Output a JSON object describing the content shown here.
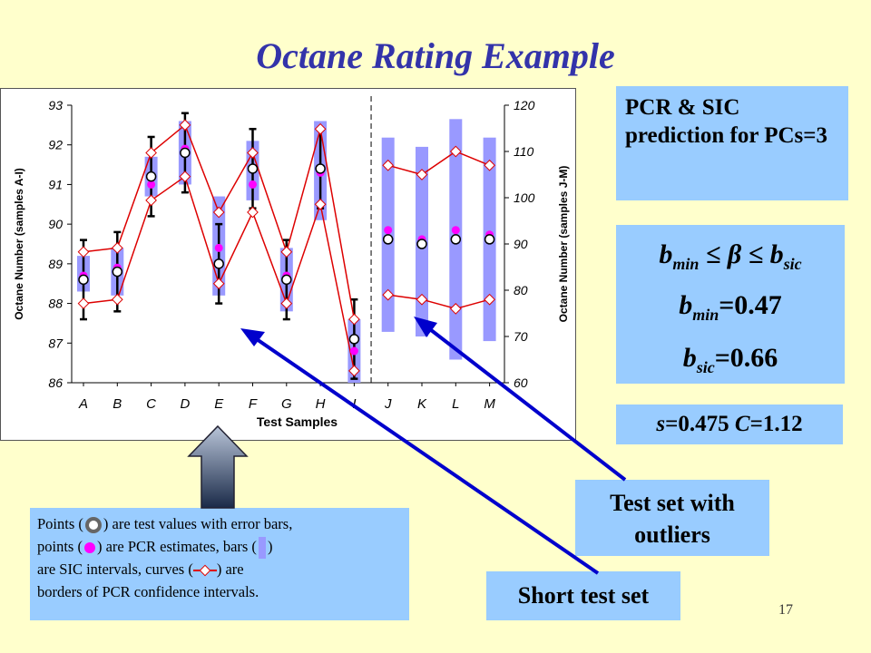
{
  "slide": {
    "title": "Octane Rating Example",
    "number": "17"
  },
  "boxes": {
    "prediction": "PCR & SIC prediction for PCs=3",
    "inequality": {
      "b_min": "b",
      "min_sub": "min",
      "le1": "≤",
      "beta": "β",
      "le2": "≤",
      "b_sic": "b",
      "sic_sub": "sic"
    },
    "bmin_value": {
      "b": "b",
      "sub": "min",
      "val": "=0.47"
    },
    "bsic_value": {
      "b": "b",
      "sub": "sic",
      "val": "=0.66"
    },
    "params": {
      "s_label": "s",
      "s_val": "=0.475 ",
      "c_label": "C",
      "c_val": "=1.12"
    },
    "test_outliers": "Test set with outliers",
    "short_test": "Short test set",
    "legend_text": {
      "p1": "Points (",
      "p2": ") are test values with error bars,",
      "p3": "points (",
      "p4": ") are PCR estimates, bars (",
      "p5": ")",
      "p6": "are SIC intervals, curves (",
      "p7": ") are",
      "p8": "borders of PCR confidence intervals."
    }
  },
  "colors": {
    "background": "#ffffcc",
    "title": "#3333aa",
    "box": "#99ccff",
    "sic_bar": "#9999ff",
    "pcr_point": "#ff00ff",
    "curve": "#dd0000",
    "arrow": "#0000cc"
  },
  "chart_data": {
    "type": "line",
    "xlabel": "Test Samples",
    "ylabel_left": "Octane Number (samples A-I)",
    "ylabel_right": "Octane Number (samples J-M)",
    "categories": [
      "A",
      "B",
      "C",
      "D",
      "E",
      "F",
      "G",
      "H",
      "I",
      "J",
      "K",
      "L",
      "M"
    ],
    "left_axis": {
      "ylim": [
        86,
        93
      ],
      "ticks": [
        "86",
        "87",
        "88",
        "89",
        "90",
        "91",
        "92",
        "93"
      ],
      "samples": [
        "A",
        "B",
        "C",
        "D",
        "E",
        "F",
        "G",
        "H",
        "I"
      ]
    },
    "right_axis": {
      "ylim": [
        60,
        120
      ],
      "ticks": [
        "60",
        "70",
        "80",
        "90",
        "100",
        "110",
        "120"
      ],
      "samples": [
        "J",
        "K",
        "L",
        "M"
      ]
    },
    "test_values": [
      88.6,
      88.8,
      91.2,
      91.8,
      89.0,
      91.4,
      88.6,
      91.4,
      87.1,
      91,
      90,
      91,
      91
    ],
    "error_bars": [
      [
        87.6,
        89.6
      ],
      [
        87.8,
        89.8
      ],
      [
        90.2,
        92.2
      ],
      [
        90.8,
        92.8
      ],
      [
        88.0,
        90.0
      ],
      [
        90.4,
        92.4
      ],
      [
        87.6,
        89.6
      ],
      [
        90.4,
        92.4
      ],
      [
        86.1,
        88.1
      ],
      null,
      null,
      null,
      null
    ],
    "pcr_estimates": [
      88.7,
      88.9,
      91.0,
      91.9,
      89.4,
      91.0,
      88.7,
      91.3,
      86.8,
      93,
      91,
      93,
      92
    ],
    "sic_intervals": [
      [
        88.3,
        89.2
      ],
      [
        88.2,
        89.4
      ],
      [
        90.7,
        91.7
      ],
      [
        91.0,
        92.6
      ],
      [
        88.2,
        90.7
      ],
      [
        90.6,
        92.1
      ],
      [
        87.8,
        89.4
      ],
      [
        90.1,
        92.6
      ],
      [
        86.0,
        87.6
      ],
      [
        71,
        113
      ],
      [
        70,
        111
      ],
      [
        65,
        117
      ],
      [
        69,
        113
      ]
    ],
    "upper_curve": [
      89.3,
      89.4,
      91.8,
      92.5,
      90.3,
      91.8,
      89.3,
      92.4,
      87.6,
      107,
      105,
      110,
      107
    ],
    "lower_curve": [
      88.0,
      88.1,
      90.6,
      91.2,
      88.5,
      90.3,
      88.0,
      90.5,
      86.3,
      79,
      78,
      76,
      78
    ],
    "divider_after": "I",
    "grid": false
  }
}
